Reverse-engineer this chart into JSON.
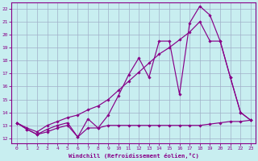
{
  "bg_color": "#c8eef0",
  "grid_color": "#a0b0c8",
  "line_color": "#880088",
  "xlabel": "Windchill (Refroidissement éolien,°C)",
  "xlim": [
    -0.5,
    23.5
  ],
  "ylim": [
    11.6,
    22.5
  ],
  "xticks": [
    0,
    1,
    2,
    3,
    4,
    5,
    6,
    7,
    8,
    9,
    10,
    11,
    12,
    13,
    14,
    15,
    16,
    17,
    18,
    19,
    20,
    21,
    22,
    23
  ],
  "yticks": [
    12,
    13,
    14,
    15,
    16,
    17,
    18,
    19,
    20,
    21,
    22
  ],
  "line1_x": [
    0,
    1,
    2,
    3,
    4,
    5,
    6,
    7,
    8,
    9,
    10,
    11,
    12,
    13,
    14,
    15,
    16,
    17,
    18,
    19,
    20,
    21,
    22,
    23
  ],
  "line1_y": [
    13.2,
    12.7,
    12.3,
    12.7,
    13.0,
    13.2,
    12.1,
    13.5,
    12.8,
    13.8,
    15.3,
    16.9,
    18.2,
    16.7,
    19.5,
    19.5,
    15.4,
    20.9,
    22.2,
    21.5,
    19.5,
    16.7,
    14.0,
    13.4
  ],
  "line2_x": [
    0,
    1,
    2,
    3,
    4,
    5,
    6,
    7,
    8,
    9,
    10,
    11,
    12,
    13,
    14,
    15,
    16,
    17,
    18,
    19,
    20,
    21,
    22,
    23
  ],
  "line2_y": [
    13.2,
    12.8,
    12.5,
    13.0,
    13.3,
    13.6,
    13.8,
    14.2,
    14.5,
    15.0,
    15.7,
    16.4,
    17.1,
    17.8,
    18.5,
    19.0,
    19.6,
    20.2,
    21.0,
    19.5,
    19.5,
    16.7,
    14.0,
    13.4
  ],
  "line3_x": [
    0,
    1,
    2,
    3,
    4,
    5,
    6,
    7,
    8,
    9,
    10,
    11,
    12,
    13,
    14,
    15,
    16,
    17,
    18,
    19,
    20,
    21,
    22,
    23
  ],
  "line3_y": [
    13.2,
    12.7,
    12.3,
    12.5,
    12.8,
    13.0,
    12.1,
    12.8,
    12.8,
    13.0,
    13.0,
    13.0,
    13.0,
    13.0,
    13.0,
    13.0,
    13.0,
    13.0,
    13.0,
    13.1,
    13.2,
    13.3,
    13.3,
    13.4
  ]
}
